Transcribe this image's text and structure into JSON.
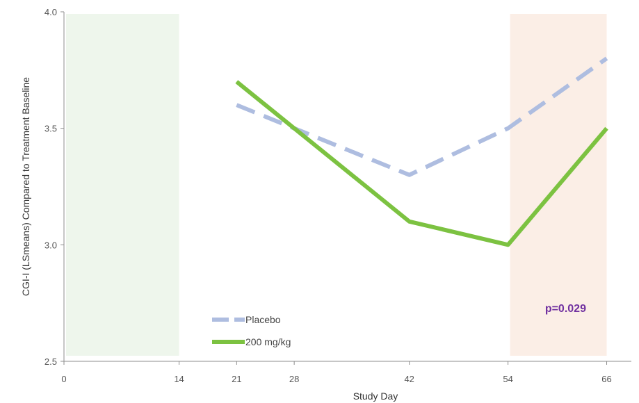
{
  "chart_data": {
    "type": "line",
    "xlabel": "Study Day",
    "ylabel": "CGI-I (LSmeans) Compared to Treatment Baseline",
    "xlim": [
      0,
      69
    ],
    "ylim": [
      2.5,
      4.0
    ],
    "x_ticks": [
      0,
      14,
      21,
      28,
      42,
      54,
      66
    ],
    "y_ticks": [
      "2.5",
      "3.0",
      "3.5",
      "4.0"
    ],
    "grid": false,
    "legend_position": "bottom-left",
    "shaded_regions": [
      {
        "x_start": 0,
        "x_end": 14,
        "color": "#eef6ec"
      },
      {
        "x_start": 54,
        "x_end": 66,
        "color": "#fbeee6"
      }
    ],
    "series": [
      {
        "name": "Placebo",
        "style": "dashed",
        "color": "#aebde0",
        "x": [
          21,
          28,
          42,
          54,
          66
        ],
        "y": [
          3.6,
          3.5,
          3.3,
          3.5,
          3.8
        ]
      },
      {
        "name": "200 mg/kg",
        "style": "solid",
        "color": "#7cc241",
        "x": [
          21,
          28,
          42,
          54,
          66
        ],
        "y": [
          3.7,
          3.5,
          3.1,
          3.0,
          3.5
        ]
      }
    ],
    "annotations": [
      {
        "text": "p=0.029",
        "x": 58.5,
        "y": 2.73,
        "color": "#7030a0"
      }
    ]
  }
}
